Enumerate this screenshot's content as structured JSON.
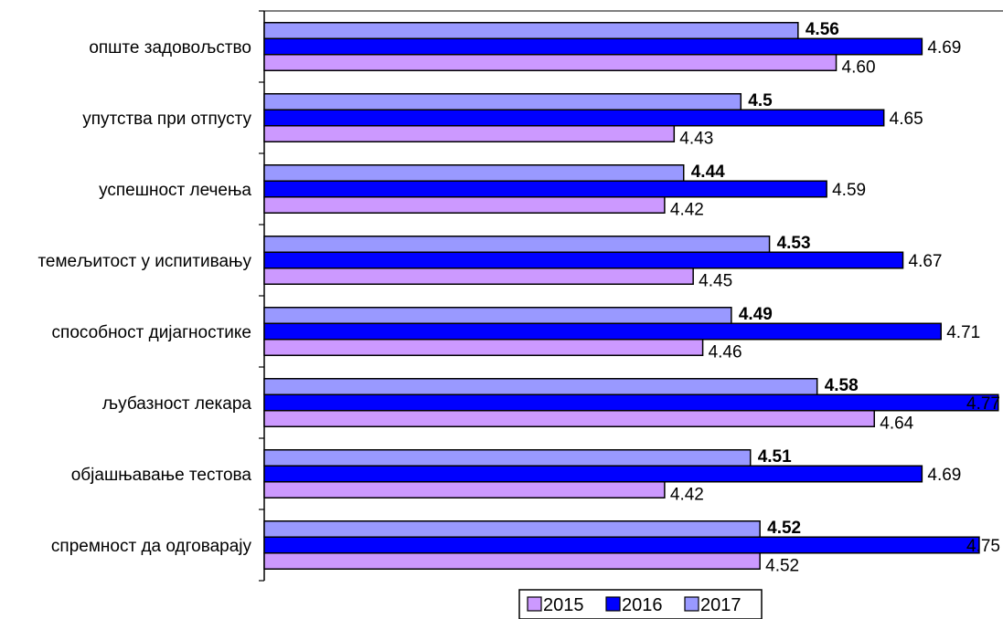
{
  "chart_data": {
    "type": "bar",
    "orientation": "horizontal",
    "categories": [
      "опште задовољство",
      "упутства при отпусту",
      "успешност лечења",
      "темељитост у испитивању",
      "способност дијагностике",
      "љубазност лекара",
      "објашњавање тестова",
      "спремност да одговарају"
    ],
    "series": [
      {
        "name": "2015",
        "color": "#cc99ff",
        "values": [
          4.6,
          4.43,
          4.42,
          4.45,
          4.46,
          4.64,
          4.42,
          4.52
        ],
        "labels": [
          "4.60",
          "4.43",
          "4.42",
          "4.45",
          "4.46",
          "4.64",
          "4.42",
          "4.52"
        ]
      },
      {
        "name": "2016",
        "color": "#0000ff",
        "values": [
          4.69,
          4.65,
          4.59,
          4.67,
          4.71,
          4.77,
          4.69,
          4.75
        ],
        "labels": [
          "4.69",
          "4.65",
          "4.59",
          "4.67",
          "4.71",
          "4.77",
          "4.69",
          "4.75"
        ]
      },
      {
        "name": "2017",
        "color": "#9999ff",
        "values": [
          4.56,
          4.5,
          4.44,
          4.53,
          4.49,
          4.58,
          4.51,
          4.52
        ],
        "labels": [
          "4.56",
          "4.5",
          "4.44",
          "4.53",
          "4.49",
          "4.58",
          "4.51",
          "4.52"
        ]
      }
    ],
    "bar_order_top_to_bottom": [
      "2017",
      "2016",
      "2015"
    ],
    "xlim": [
      4.0,
      4.775
    ],
    "grid": false,
    "x_axis_visible": false,
    "legend": {
      "position": "bottom",
      "entries": [
        "2015",
        "2016",
        "2017"
      ]
    },
    "title": "",
    "xlabel": "",
    "ylabel": ""
  }
}
